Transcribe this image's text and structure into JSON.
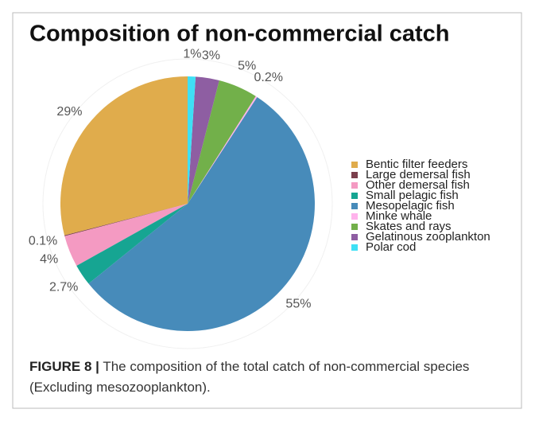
{
  "chart_data": {
    "type": "pie",
    "title": "Composition of non-commercial catch",
    "categories": [
      "Bentic filter feeders",
      "Large demersal fish",
      "Other demersal fish",
      "Small pelagic fish",
      "Mesopelagic fish",
      "Minke whale",
      "Skates and rays",
      "Gelatinous zooplankton",
      "Polar cod"
    ],
    "values": [
      29,
      0.1,
      4,
      2.7,
      55,
      0.2,
      5,
      3,
      1
    ],
    "value_labels": [
      "29%",
      "0.1%",
      "4%",
      "2.7%",
      "55%",
      "0.2%",
      "5%",
      "3%",
      "1%"
    ],
    "colors": [
      "#e0ac4c",
      "#7b3f4c",
      "#f49ac2",
      "#16a592",
      "#478bba",
      "#ffb3ec",
      "#72b04a",
      "#8e5ea2",
      "#3ee0f5"
    ],
    "legend": "right"
  },
  "caption": {
    "label": "FIGURE 8 |",
    "text": "The composition of the total catch of non-commercial species (Excluding mesozooplankton)."
  }
}
